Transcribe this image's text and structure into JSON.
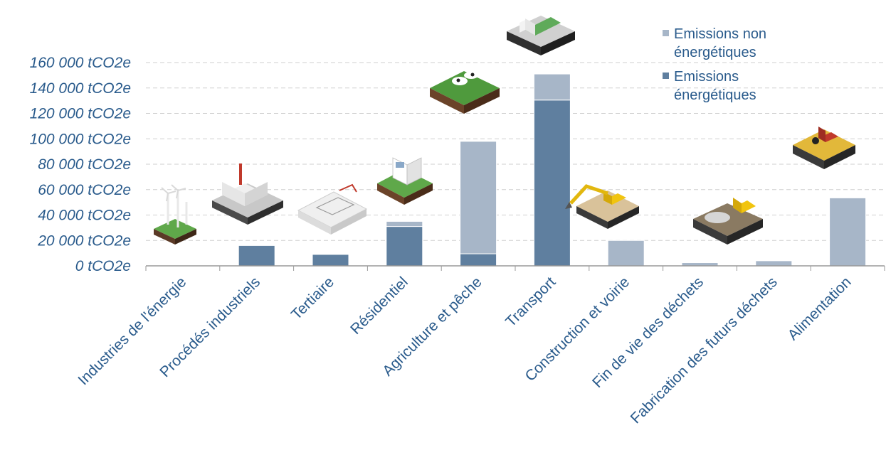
{
  "chart_data": {
    "type": "bar",
    "stacked": true,
    "categories": [
      "Industries de l'énergie",
      "Procédés industriels",
      "Tertiaire",
      "Résidentiel",
      "Agriculture et pêche",
      "Transport",
      "Construction et voirie",
      "Fin de vie des déchets",
      "Fabrication des futurs déchets",
      "Alimentation"
    ],
    "series": [
      {
        "name": "Emissions énergétiques",
        "color": "#5f7f9f",
        "values": [
          0,
          16000,
          9000,
          31000,
          9500,
          130500,
          0,
          0,
          0,
          0
        ]
      },
      {
        "name": "Emissions non énergétiques",
        "color": "#a7b6c8",
        "values": [
          0,
          0,
          0,
          4000,
          88500,
          20500,
          20000,
          2500,
          4000,
          53500
        ]
      }
    ],
    "y_ticks": [
      "0 tCO2e",
      "20 000 tCO2e",
      "40 000 tCO2e",
      "60 000 tCO2e",
      "80 000 tCO2e",
      "100 000 tCO2e",
      "120 000 tCO2e",
      "140 000 tCO2e",
      "160 000 tCO2e"
    ],
    "ylim": [
      0,
      160000
    ],
    "grid": true,
    "legend": {
      "position": "top-right",
      "entries": [
        {
          "line1": "Emissions non",
          "line2": "énergétiques",
          "color": "#a7b6c8"
        },
        {
          "line1": "Emissions",
          "line2": "énergétiques",
          "color": "#5f7f9f"
        }
      ]
    },
    "title": "",
    "xlabel": "",
    "ylabel": ""
  },
  "colors": {
    "axis_text": "#2a5b8c",
    "grid": "#cfcfcf",
    "axis": "#9a9a9a"
  },
  "illustrations": [
    "wind-turbines-icon",
    "factory-icon",
    "office-building-icon",
    "house-icon",
    "cow-pasture-icon",
    "truck-icon",
    "excavator-icon",
    "bulldozer-waste-icon",
    "tractor-field-icon"
  ]
}
